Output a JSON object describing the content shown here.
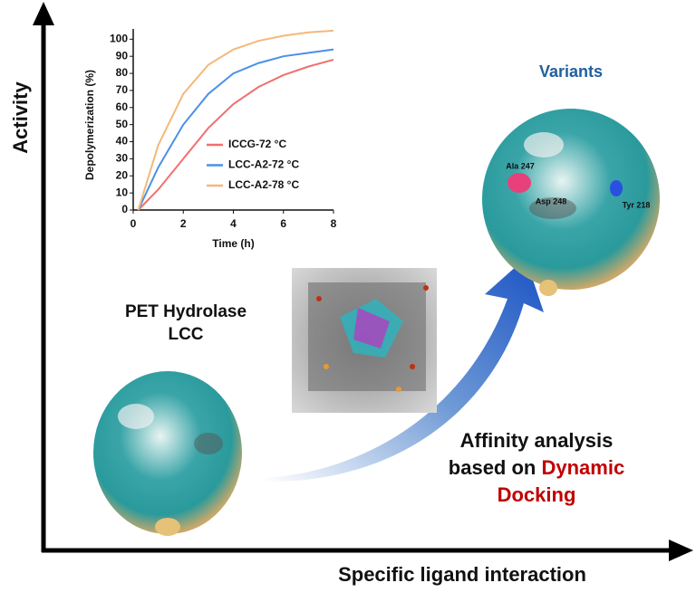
{
  "chart_data": {
    "type": "line",
    "x_label": "Time (h)",
    "y_label": "Depolymerization (%)",
    "x": [
      0.2,
      1,
      2,
      3,
      4,
      5,
      6,
      7,
      8
    ],
    "series": [
      {
        "name": "ICCG-72 °C",
        "color": "#f07070",
        "values": [
          0,
          12,
          30,
          48,
          62,
          72,
          79,
          84,
          88
        ]
      },
      {
        "name": "LCC-A2-72 °C",
        "color": "#4a90e8",
        "values": [
          0,
          25,
          50,
          68,
          80,
          86,
          90,
          92,
          94
        ]
      },
      {
        "name": "LCC-A2-78 °C",
        "color": "#f5b87a",
        "values": [
          0,
          38,
          68,
          85,
          94,
          99,
          102,
          104,
          105
        ]
      }
    ],
    "xlim": [
      0,
      8
    ],
    "ylim": [
      0,
      106
    ],
    "xticks": [
      0,
      2,
      4,
      6,
      8
    ],
    "yticks": [
      0,
      10,
      20,
      30,
      40,
      50,
      60,
      70,
      80,
      90,
      100
    ]
  },
  "diagram": {
    "y_axis_label": "Activity",
    "x_axis_label": "Specific ligand interaction",
    "start_label": [
      "PET Hydrolase",
      "LCC"
    ],
    "end_label": "Variants",
    "residues": [
      "Ala 247",
      "Asp 248",
      "Tyr 218"
    ],
    "method": {
      "line1": "Affinity analysis",
      "line2": "based on",
      "highlight": "Dynamic",
      "line3": "Docking"
    }
  }
}
